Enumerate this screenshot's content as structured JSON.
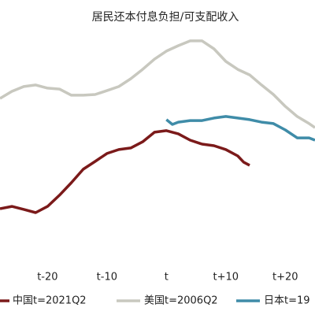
{
  "chart_data": {
    "type": "line",
    "title": "居民还本付息负担/可支配收入",
    "xlim": [
      -28,
      25
    ],
    "xticks": [
      {
        "value": -20,
        "label": "t-20"
      },
      {
        "value": -10,
        "label": "t-10"
      },
      {
        "value": 0,
        "label": "t"
      },
      {
        "value": 10,
        "label": "t+10"
      },
      {
        "value": 20,
        "label": "t+20"
      }
    ],
    "ylim": [
      0,
      100
    ],
    "series": [
      {
        "name": "中国t=2021Q2",
        "color": "#7b1a1a",
        "x": [
          -28,
          -26,
          -24,
          -22,
          -20,
          -18,
          -16,
          -14,
          -12,
          -10,
          -8,
          -6,
          -4,
          -2,
          0,
          2,
          4,
          6,
          8,
          10,
          12,
          13,
          14
        ],
        "values": [
          22.4,
          23.4,
          22.1,
          20.7,
          23.4,
          28.3,
          33.8,
          39.7,
          43.1,
          46.6,
          48.3,
          49.0,
          51.7,
          55.9,
          56.6,
          55.2,
          52.4,
          50.7,
          50.0,
          48.3,
          45.5,
          42.8,
          41.4
        ]
      },
      {
        "name": "美国t=2006Q2",
        "color": "#c8c8bf",
        "x": [
          -28,
          -26,
          -24,
          -22,
          -20,
          -18,
          -16,
          -14,
          -12,
          -10,
          -8,
          -6,
          -4,
          -2,
          0,
          2,
          4,
          6,
          8,
          10,
          12,
          14,
          16,
          18,
          20,
          22,
          24,
          25
        ],
        "values": [
          70.7,
          73.8,
          75.9,
          76.6,
          75.2,
          74.8,
          72.1,
          72.1,
          72.4,
          74.1,
          75.9,
          79.3,
          83.4,
          87.9,
          91.4,
          93.8,
          95.9,
          95.9,
          92.4,
          86.9,
          83.4,
          81.0,
          76.6,
          72.4,
          67.2,
          62.8,
          59.7,
          57.9
        ]
      },
      {
        "name": "日本t=19",
        "color": "#3f8ca8",
        "x": [
          0,
          1,
          2,
          4,
          6,
          8,
          10,
          12,
          14,
          16,
          18,
          20,
          22,
          24,
          25
        ],
        "values": [
          61.4,
          59.3,
          60.3,
          61.0,
          61.0,
          62.1,
          62.8,
          62.1,
          61.4,
          60.3,
          59.7,
          56.9,
          53.4,
          53.4,
          52.4
        ]
      }
    ]
  }
}
